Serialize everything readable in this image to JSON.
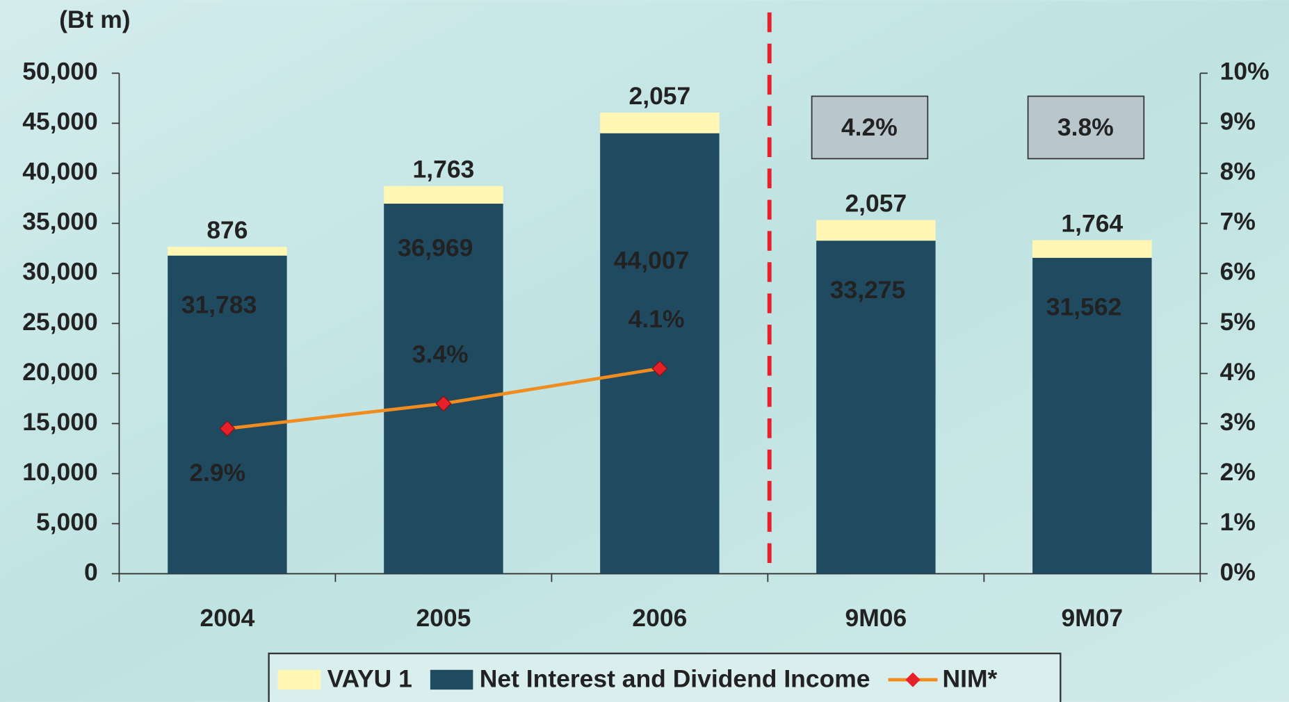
{
  "chart_data": {
    "type": "bar",
    "y_axis_label": "(Bt m)",
    "categories": [
      "2004",
      "2005",
      "2006",
      "9M06",
      "9M07"
    ],
    "series": [
      {
        "name": "VAYU 1",
        "color": "#fff7b3",
        "values": [
          876,
          1763,
          2057,
          2057,
          1764
        ],
        "value_labels": [
          "876",
          "1,763",
          "2,057",
          "2,057",
          "1,764"
        ]
      },
      {
        "name": "Net Interest and Dividend Income",
        "color": "#1f4a60",
        "values": [
          31783,
          36969,
          44007,
          33275,
          31562
        ],
        "value_labels": [
          "31,783",
          "36,969",
          "44,007",
          "33,275",
          "31,562"
        ]
      },
      {
        "name": "NIM*",
        "type": "line",
        "axis": "y2",
        "color": "#f28c1f",
        "marker_color": "#e8202a",
        "values": [
          2.9,
          3.4,
          4.1,
          null,
          null
        ],
        "value_labels": [
          "2.9%",
          "3.4%",
          "4.1%",
          null,
          null
        ]
      }
    ],
    "annotations": [
      "4.2%",
      "3.8%"
    ],
    "ylim": [
      0,
      50000
    ],
    "yticks": [
      0,
      {
        "value": 5000,
        "label": "5,000"
      },
      {
        "value": 10000,
        "label": "10,000"
      },
      {
        "value": 15000,
        "label": "15,000"
      },
      {
        "value": 20000,
        "label": "20,000"
      },
      {
        "value": 25000,
        "label": "25,000"
      },
      {
        "value": 30000,
        "label": "30,000"
      },
      {
        "value": 35000,
        "label": "35,000"
      },
      {
        "value": 40000,
        "label": "40,000"
      },
      {
        "value": 45000,
        "label": "45,000"
      },
      {
        "value": 50000,
        "label": "50,000"
      }
    ],
    "y2lim": [
      0,
      10
    ],
    "y2ticks": [
      {
        "value": 0,
        "label": "0%"
      },
      {
        "value": 1,
        "label": "1%"
      },
      {
        "value": 2,
        "label": "2%"
      },
      {
        "value": 3,
        "label": "3%"
      },
      {
        "value": 4,
        "label": "4%"
      },
      {
        "value": 5,
        "label": "5%"
      },
      {
        "value": 6,
        "label": "6%"
      },
      {
        "value": 7,
        "label": "7%"
      },
      {
        "value": 8,
        "label": "8%"
      },
      {
        "value": 9,
        "label": "9%"
      },
      {
        "value": 10,
        "label": "10%"
      }
    ],
    "legend": "bottom"
  }
}
